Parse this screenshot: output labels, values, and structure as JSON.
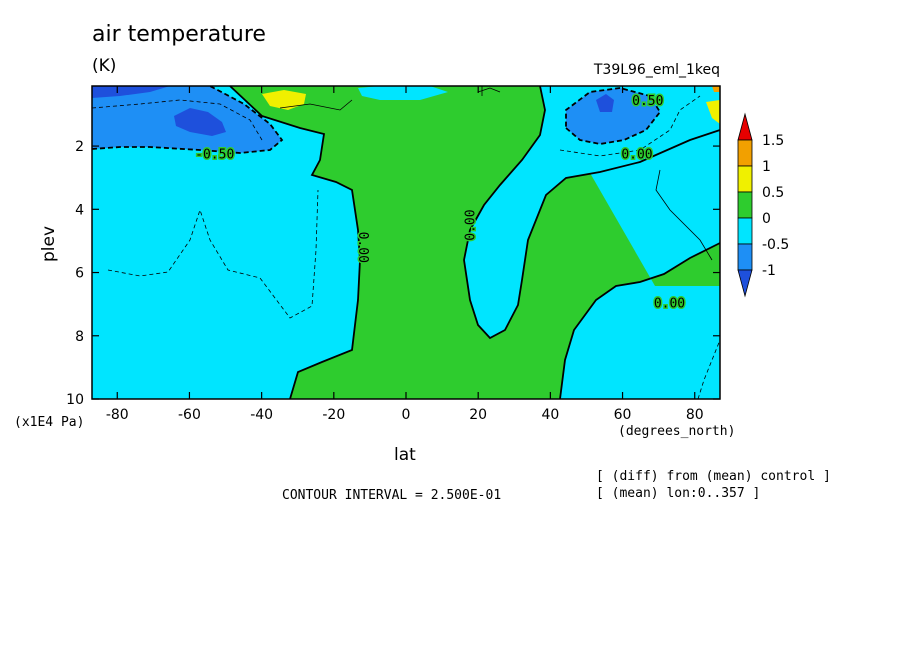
{
  "title": "air temperature",
  "units": "(K)",
  "run_name": "T39L96_eml_1keq",
  "xlabel": "lat",
  "ylabel": "plev",
  "y_units": "(x1E4 Pa)",
  "x_units": "(degrees_north)",
  "contour_interval": "CONTOUR INTERVAL = 2.500E-01",
  "notes": [
    "[ (diff) from (mean) control ]",
    "[ (mean) lon:0..357 ]"
  ],
  "chart_data": {
    "type": "contour",
    "x": {
      "label": "lat",
      "lim": [
        -87,
        87
      ],
      "ticks": [
        -80,
        -60,
        -40,
        -20,
        0,
        20,
        40,
        60,
        80
      ]
    },
    "y": {
      "label": "plev",
      "lim": [
        0.1,
        10
      ],
      "inverted": true,
      "ticks": [
        2,
        4,
        6,
        8,
        10
      ]
    },
    "contour_labels": [
      {
        "text": "-0.50",
        "lat": -53,
        "plev": 2.4
      },
      {
        "text": "0.00",
        "lat": -13,
        "plev": 5.2,
        "rotate": 90
      },
      {
        "text": "0.00",
        "lat": 19,
        "plev": 4.5,
        "rotate": -90
      },
      {
        "text": "0.00",
        "lat": 64,
        "plev": 2.4
      },
      {
        "text": "0.00",
        "lat": 73,
        "plev": 7.1
      },
      {
        "text": "0.50",
        "lat": 67,
        "plev": 0.7
      }
    ],
    "colorbar": {
      "levels": [
        "1.5",
        "1",
        "0.5",
        "0",
        "-0.5",
        "-1"
      ],
      "colors": [
        "#e60000",
        "#f2a000",
        "#f0f000",
        "#2ecc2e",
        "#00e5ff",
        "#1e8ff5",
        "#1e50dc"
      ]
    },
    "colors": {
      "neg_strong": "#1e50dc",
      "neg_mid": "#1e8ff5",
      "neg_weak": "#00e5ff",
      "pos_weak": "#2ecc2e",
      "pos_mid": "#f0f000",
      "pos_strong": "#f2a000"
    }
  }
}
